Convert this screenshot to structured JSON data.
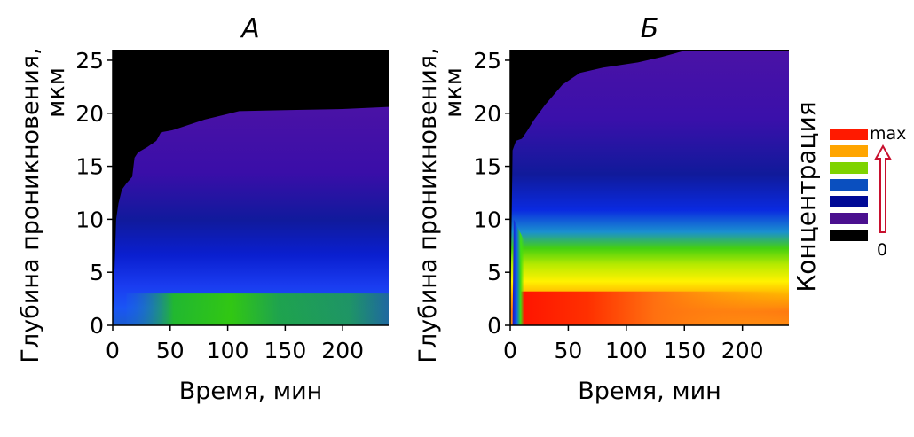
{
  "chart_data": [
    {
      "type": "heatmap",
      "title": "А",
      "xlabel": "Время, мин",
      "ylabel_line1": "Глубина проникновения,",
      "ylabel_line2": "мкм",
      "xlim": [
        0,
        240
      ],
      "ylim": [
        0,
        26
      ],
      "x_ticks": [
        0,
        50,
        100,
        150,
        200
      ],
      "x_tick_labels": [
        "0",
        "50",
        "100",
        "150",
        "200"
      ],
      "y_ticks": [
        0,
        5,
        10,
        15,
        20,
        25
      ],
      "y_tick_labels": [
        "0",
        "5",
        "10",
        "15",
        "20",
        "25"
      ],
      "boundary_depth": [
        [
          0,
          0
        ],
        [
          3,
          10
        ],
        [
          5,
          11.5
        ],
        [
          8,
          12.8
        ],
        [
          12,
          13.4
        ],
        [
          17,
          14
        ],
        [
          19,
          15.8
        ],
        [
          22,
          16.3
        ],
        [
          30,
          16.8
        ],
        [
          38,
          17.4
        ],
        [
          42,
          18.2
        ],
        [
          52,
          18.4
        ],
        [
          80,
          19.4
        ],
        [
          110,
          20.2
        ],
        [
          150,
          20.3
        ],
        [
          200,
          20.4
        ],
        [
          240,
          20.6
        ]
      ],
      "bands": [
        {
          "depth_from": 0,
          "depth_to": 2.5,
          "t_from": 50,
          "t_to": 110,
          "level": "green"
        },
        {
          "depth_from": 0,
          "depth_to": 2.5,
          "t_from": 110,
          "t_to": 200,
          "level": "green-dark"
        },
        {
          "depth_from": 0,
          "depth_to": 4,
          "t_from": 10,
          "t_to": 240,
          "level": "blue-light"
        },
        {
          "depth_from": 3,
          "depth_to": 11,
          "t_from": 5,
          "t_to": 240,
          "level": "blue"
        },
        {
          "depth_from": 9,
          "depth_to": 20.6,
          "t_from": 0,
          "t_to": 240,
          "level": "indigo"
        }
      ]
    },
    {
      "type": "heatmap",
      "title": "Б",
      "xlabel": "Время, мин",
      "ylabel_line1": "Глубина проникновения,",
      "ylabel_line2": "мкм",
      "xlim": [
        0,
        240
      ],
      "ylim": [
        0,
        26
      ],
      "x_ticks": [
        0,
        50,
        100,
        150,
        200
      ],
      "x_tick_labels": [
        "0",
        "50",
        "100",
        "150",
        "200"
      ],
      "y_ticks": [
        0,
        5,
        10,
        15,
        20,
        25
      ],
      "y_tick_labels": [
        "0",
        "5",
        "10",
        "15",
        "20",
        "25"
      ],
      "boundary_depth": [
        [
          0,
          0
        ],
        [
          2,
          16.5
        ],
        [
          5,
          17.4
        ],
        [
          10,
          17.6
        ],
        [
          15,
          18.4
        ],
        [
          20,
          19.3
        ],
        [
          30,
          20.8
        ],
        [
          45,
          22.7
        ],
        [
          60,
          23.8
        ],
        [
          80,
          24.3
        ],
        [
          110,
          24.8
        ],
        [
          130,
          25.3
        ],
        [
          150,
          25.9
        ],
        [
          240,
          25.9
        ]
      ],
      "bands": [
        {
          "depth_from": 0,
          "depth_to": 3,
          "t_from": 8,
          "t_to": 240,
          "level": "red-orange"
        },
        {
          "depth_from": 2.5,
          "depth_to": 5,
          "t_from": 6,
          "t_to": 240,
          "level": "yellow"
        },
        {
          "depth_from": 4.5,
          "depth_to": 8,
          "t_from": 4,
          "t_to": 240,
          "level": "green"
        },
        {
          "depth_from": 7,
          "depth_to": 12,
          "t_from": 2,
          "t_to": 240,
          "level": "blue"
        },
        {
          "depth_from": 11,
          "depth_to": 25.9,
          "t_from": 0,
          "t_to": 240,
          "level": "indigo"
        }
      ]
    }
  ],
  "legend": {
    "title": "Концентрация",
    "max_label": "max",
    "min_label": "0",
    "swatches": [
      "#ff1a00",
      "#ffa500",
      "#7ed300",
      "#0a4fbf",
      "#000a96",
      "#4a108f",
      "#000000"
    ]
  },
  "colors": {
    "background_region": "#000000",
    "red": "#ff1400",
    "orange": "#ff9a10",
    "yellow": "#fff200",
    "green": "#33d100",
    "green_dark": "#1f9a3a",
    "blue_light": "#1a5cff",
    "blue": "#0a1fd6",
    "indigo": "#4a12a6",
    "arrow": "#c8102e"
  }
}
